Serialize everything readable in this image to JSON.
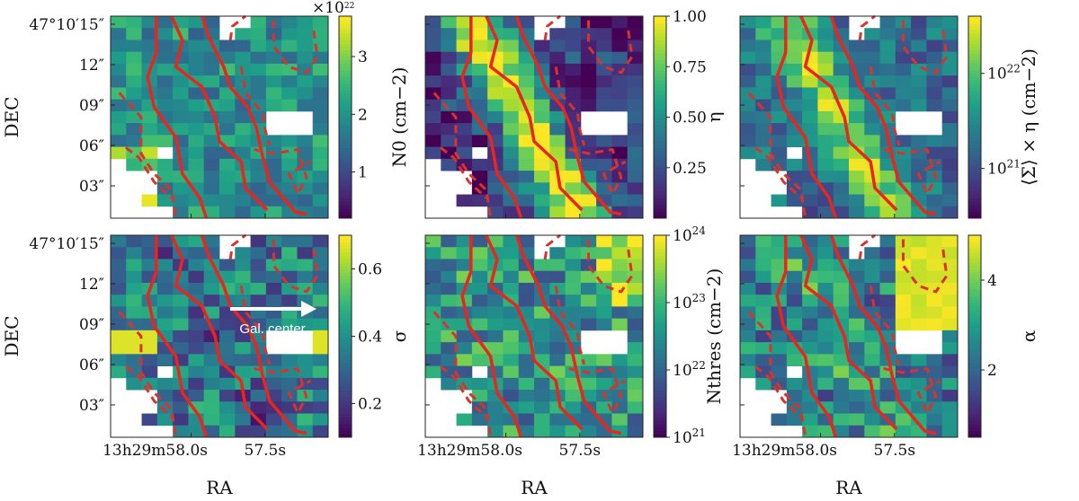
{
  "chart_data": {
    "type": "heatmap",
    "grid": {
      "cols": 14,
      "rows": 17
    },
    "ra_ticks": [
      "13h29m58.0s",
      "57.5s"
    ],
    "dec_ticks": [
      "47°10′15″",
      "12″",
      "09″",
      "06″",
      "03″"
    ],
    "xlabel": "RA",
    "ylabel": "DEC",
    "annotation": "Gal. center",
    "panels": [
      {
        "id": "N0",
        "label": "N0 (cm−2)",
        "scale": "linear",
        "range": [
          0.2,
          3.7
        ],
        "ticks": [
          "1",
          "2",
          "3"
        ],
        "tick_values": [
          1,
          2,
          3
        ],
        "multiplier": "×10^22",
        "seed": 11
      },
      {
        "id": "eta",
        "label": "η",
        "scale": "linear",
        "range": [
          0,
          1
        ],
        "ticks": [
          "0.25",
          "0.50",
          "0.75",
          "1.00"
        ],
        "tick_values": [
          0.25,
          0.5,
          0.75,
          1.0
        ],
        "seed": 23
      },
      {
        "id": "sigma_eta",
        "label": "⟨Σ⟩ × η (cm−2)",
        "scale": "log",
        "range": [
          3e+20,
          4e+22
        ],
        "ticks": [
          "10^21",
          "10^22"
        ],
        "tick_values": [
          1e+21,
          1e+22
        ],
        "seed": 37
      },
      {
        "id": "sigma",
        "label": "σ",
        "scale": "linear",
        "range": [
          0.1,
          0.7
        ],
        "ticks": [
          "0.2",
          "0.4",
          "0.6"
        ],
        "tick_values": [
          0.2,
          0.4,
          0.6
        ],
        "seed": 41
      },
      {
        "id": "Nthres",
        "label": "Nthres (cm−2)",
        "scale": "log",
        "range": [
          1e+21,
          1e+24
        ],
        "ticks": [
          "10^21",
          "10^22",
          "10^23",
          "10^24"
        ],
        "tick_values": [
          1e+21,
          1e+22,
          1e+23,
          1e+24
        ],
        "seed": 53
      },
      {
        "id": "alpha",
        "label": "α",
        "scale": "linear",
        "range": [
          0.5,
          5
        ],
        "ticks": [
          "2",
          "4"
        ],
        "tick_values": [
          2,
          4
        ],
        "seed": 67
      }
    ]
  }
}
